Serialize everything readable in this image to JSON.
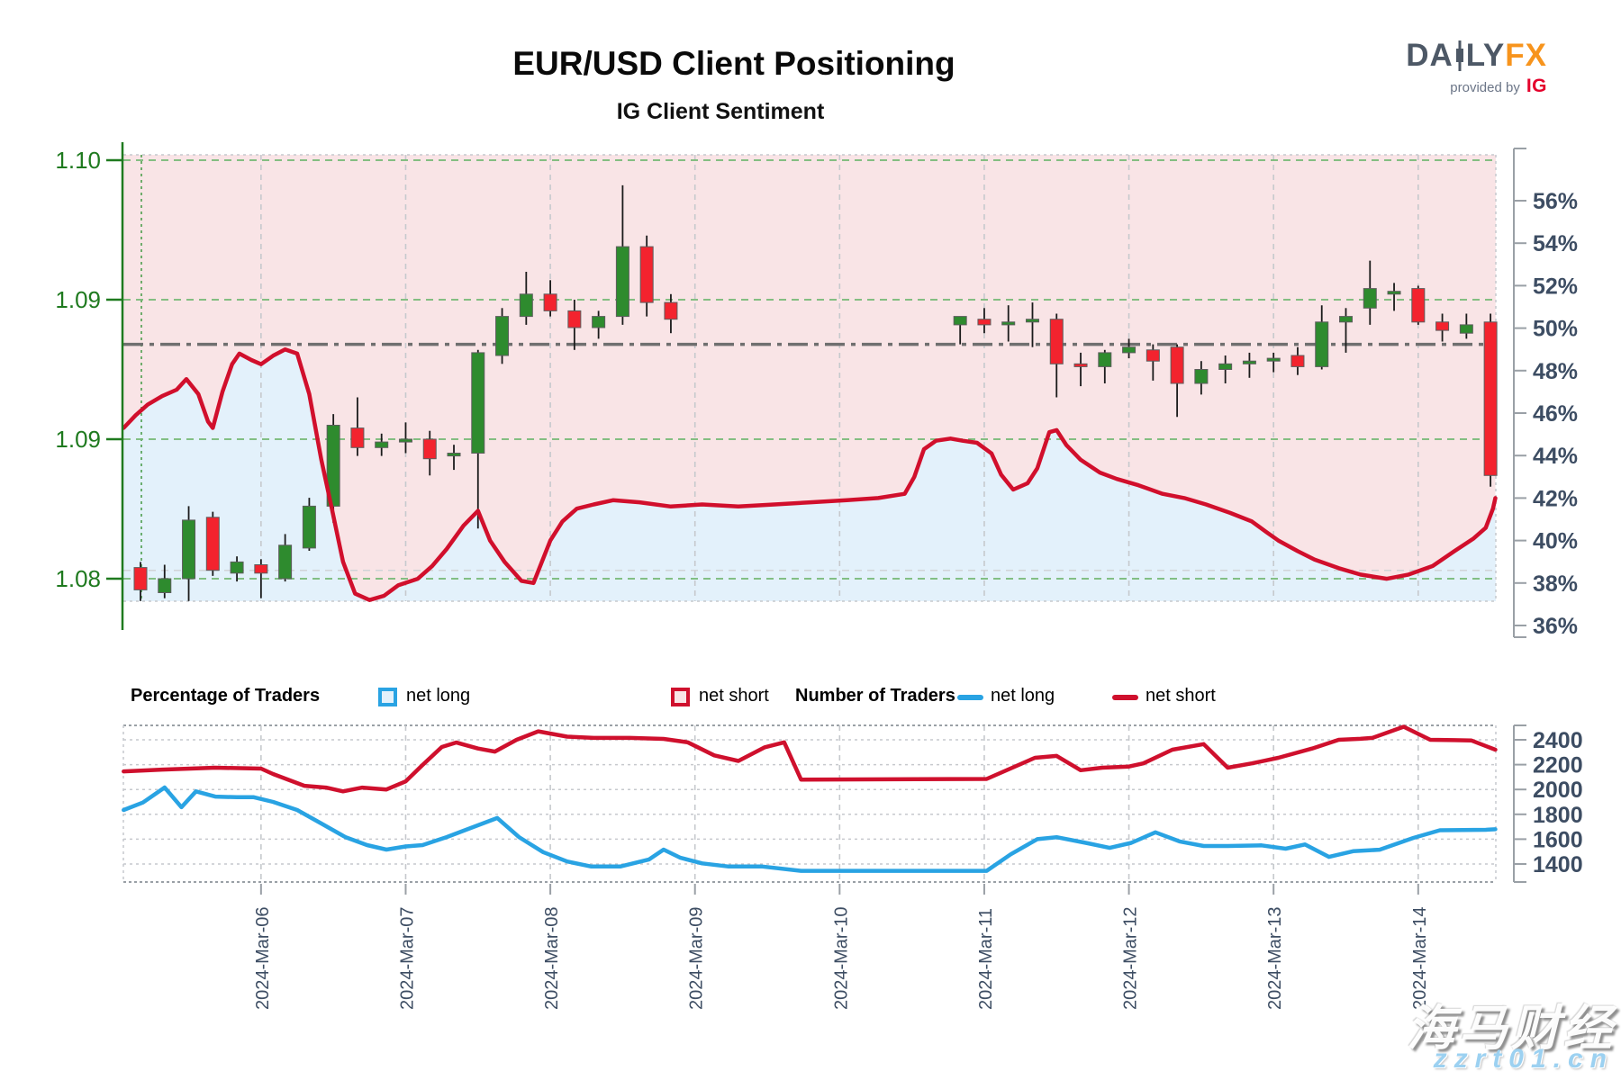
{
  "header": {
    "title": "EUR/USD Client Positioning",
    "subtitle": "IG Client Sentiment"
  },
  "logo": {
    "da": "DA",
    "ly": "LY",
    "fx": "FX",
    "provided": "provided by",
    "ig": "IG"
  },
  "legend": {
    "percent_title": "Percentage of Traders",
    "number_title": "Number of Traders",
    "net_long": "net long",
    "net_short": "net short"
  },
  "watermark": {
    "line1": "海马财经",
    "line2": "zzrt01.cn"
  },
  "colors": {
    "long_blue": "#29a3e3",
    "short_red": "#cf102d",
    "sentiment_line_red": "#d10f2c",
    "candle_green": "#2e8b2e",
    "candle_red": "#f3232e",
    "fill_pink": "#f9e4e6",
    "fill_blue": "#e3f1fb",
    "axis_green": "#1f7a1f",
    "axis_slate": "#3d4d63",
    "grid_grey": "#c6c9cd",
    "border_grey": "#9aa0a6",
    "grid_green": "#74b874",
    "dashdot_grey": "#6f6f6f"
  },
  "chart_data": [
    {
      "type": "candlestick",
      "title": "IG Client Sentiment",
      "pair": "EUR/USD",
      "interval_hours": 4,
      "legend_note": "blue area below line = net long %, pink area above line = net short %",
      "price_ticks": {
        "labels": [
          "1.10",
          "1.09",
          "1.09",
          "1.08"
        ],
        "values": [
          1.1,
          1.095,
          1.09,
          1.085
        ]
      },
      "percent_ticks": {
        "labels": [
          "56%",
          "54%",
          "52%",
          "50%",
          "48%",
          "46%",
          "44%",
          "42%",
          "40%",
          "38%",
          "36%"
        ],
        "values": [
          56,
          54,
          52,
          50,
          48,
          46,
          44,
          42,
          40,
          38,
          36
        ]
      },
      "date_ticks": [
        {
          "t": 5,
          "label": "2024-Mar-06"
        },
        {
          "t": 11,
          "label": "2024-Mar-07"
        },
        {
          "t": 17,
          "label": "2024-Mar-08"
        },
        {
          "t": 23,
          "label": "2024-Mar-09"
        },
        {
          "t": 29,
          "label": "2024-Mar-10"
        },
        {
          "t": 35,
          "label": "2024-Mar-11"
        },
        {
          "t": 41,
          "label": "2024-Mar-12"
        },
        {
          "t": 47,
          "label": "2024-Mar-13"
        },
        {
          "t": 53,
          "label": "2024-Mar-14"
        }
      ],
      "levels": {
        "dashdot_price": 1.0934,
        "grey_dashed_price": 1.0853
      },
      "candles": [
        [
          0,
          1.0854,
          1.0856,
          1.0842,
          1.0846
        ],
        [
          1,
          1.0845,
          1.0855,
          1.0843,
          1.085
        ],
        [
          2,
          1.085,
          1.0876,
          1.0842,
          1.0871
        ],
        [
          3,
          1.0872,
          1.0874,
          1.0851,
          1.0853
        ],
        [
          4,
          1.0852,
          1.0858,
          1.0849,
          1.0856
        ],
        [
          5,
          1.0855,
          1.0857,
          1.0843,
          1.0852
        ],
        [
          6,
          1.085,
          1.0866,
          1.0849,
          1.0862
        ],
        [
          7,
          1.0861,
          1.0879,
          1.086,
          1.0876
        ],
        [
          8,
          1.0876,
          1.0909,
          1.087,
          1.0905
        ],
        [
          9,
          1.0904,
          1.0915,
          1.0894,
          1.0897
        ],
        [
          10,
          1.0897,
          1.0902,
          1.0894,
          1.0899
        ],
        [
          11,
          1.0899,
          1.0906,
          1.0895,
          1.09
        ],
        [
          12,
          1.09,
          1.0903,
          1.0887,
          1.0893
        ],
        [
          13,
          1.0894,
          1.0898,
          1.0889,
          1.0895
        ],
        [
          14,
          1.0895,
          1.0932,
          1.0868,
          1.0931
        ],
        [
          15,
          1.093,
          1.0947,
          1.0927,
          1.0944
        ],
        [
          16,
          1.0944,
          1.096,
          1.0941,
          1.0952
        ],
        [
          17,
          1.0952,
          1.0957,
          1.0944,
          1.0946
        ],
        [
          18,
          1.0946,
          1.095,
          1.0932,
          1.094
        ],
        [
          19,
          1.094,
          1.0946,
          1.0936,
          1.0944
        ],
        [
          20,
          1.0944,
          1.0991,
          1.0941,
          1.0969
        ],
        [
          21,
          1.0969,
          1.0973,
          1.0944,
          1.0949
        ],
        [
          22,
          1.0949,
          1.0952,
          1.0938,
          1.0943
        ],
        [
          34,
          1.0941,
          1.0944,
          1.0934,
          1.0944
        ],
        [
          35,
          1.0943,
          1.0947,
          1.0938,
          1.0941
        ],
        [
          36,
          1.0941,
          1.0948,
          1.0935,
          1.0942
        ],
        [
          37,
          1.0942,
          1.0949,
          1.0933,
          1.0943
        ],
        [
          38,
          1.0943,
          1.0945,
          1.0915,
          1.0927
        ],
        [
          39,
          1.0927,
          1.0931,
          1.0919,
          1.0926
        ],
        [
          40,
          1.0926,
          1.0932,
          1.092,
          1.0931
        ],
        [
          41,
          1.0931,
          1.0936,
          1.0929,
          1.0933
        ],
        [
          42,
          1.0932,
          1.0934,
          1.0921,
          1.0928
        ],
        [
          43,
          1.0933,
          1.0934,
          1.0908,
          1.092
        ],
        [
          44,
          1.092,
          1.0928,
          1.0916,
          1.0925
        ],
        [
          45,
          1.0925,
          1.093,
          1.092,
          1.0927
        ],
        [
          46,
          1.0927,
          1.0931,
          1.0922,
          1.0928
        ],
        [
          47,
          1.0928,
          1.0931,
          1.0924,
          1.0929
        ],
        [
          48,
          1.093,
          1.0933,
          1.0923,
          1.0926
        ],
        [
          49,
          1.0926,
          1.0948,
          1.0925,
          1.0942
        ],
        [
          50,
          1.0942,
          1.0947,
          1.0931,
          1.0944
        ],
        [
          51,
          1.0947,
          1.0964,
          1.0941,
          1.0954
        ],
        [
          52,
          1.0952,
          1.0956,
          1.0946,
          1.0953
        ],
        [
          53,
          1.0954,
          1.0955,
          1.0941,
          1.0942
        ],
        [
          54,
          1.0942,
          1.0945,
          1.0935,
          1.0939
        ],
        [
          55,
          1.0938,
          1.0945,
          1.0936,
          1.0941
        ],
        [
          56,
          1.0942,
          1.0945,
          1.0883,
          1.0887
        ]
      ],
      "percent_net_long_line": [
        [
          -0.7,
          45.3
        ],
        [
          -0.2,
          45.9
        ],
        [
          0.3,
          46.4
        ],
        [
          0.9,
          46.8
        ],
        [
          1.5,
          47.1
        ],
        [
          1.9,
          47.6
        ],
        [
          2.4,
          46.9
        ],
        [
          2.8,
          45.6
        ],
        [
          3.0,
          45.3
        ],
        [
          3.4,
          47.0
        ],
        [
          3.8,
          48.3
        ],
        [
          4.1,
          48.8
        ],
        [
          4.6,
          48.5
        ],
        [
          5.0,
          48.3
        ],
        [
          5.5,
          48.7
        ],
        [
          6.0,
          49.0
        ],
        [
          6.5,
          48.8
        ],
        [
          7.0,
          46.9
        ],
        [
          7.5,
          43.8
        ],
        [
          7.9,
          41.7
        ],
        [
          8.4,
          39.0
        ],
        [
          8.9,
          37.5
        ],
        [
          9.5,
          37.2
        ],
        [
          10.1,
          37.4
        ],
        [
          10.7,
          37.9
        ],
        [
          11.5,
          38.2
        ],
        [
          12.1,
          38.8
        ],
        [
          12.7,
          39.6
        ],
        [
          13.4,
          40.7
        ],
        [
          14.0,
          41.4
        ],
        [
          14.5,
          40.0
        ],
        [
          15.1,
          39.0
        ],
        [
          15.8,
          38.1
        ],
        [
          16.3,
          38.0
        ],
        [
          17.0,
          40.0
        ],
        [
          17.5,
          40.9
        ],
        [
          18.1,
          41.5
        ],
        [
          18.8,
          41.7
        ],
        [
          19.6,
          41.9
        ],
        [
          20.7,
          41.8
        ],
        [
          22.0,
          41.6
        ],
        [
          23.3,
          41.7
        ],
        [
          24.8,
          41.6
        ],
        [
          26.3,
          41.7
        ],
        [
          27.8,
          41.8
        ],
        [
          29.3,
          41.9
        ],
        [
          30.6,
          42.0
        ],
        [
          31.7,
          42.2
        ],
        [
          32.1,
          43.0
        ],
        [
          32.5,
          44.3
        ],
        [
          33.0,
          44.7
        ],
        [
          33.6,
          44.8
        ],
        [
          34.1,
          44.7
        ],
        [
          34.7,
          44.6
        ],
        [
          35.3,
          44.1
        ],
        [
          35.7,
          43.1
        ],
        [
          36.2,
          42.4
        ],
        [
          36.8,
          42.7
        ],
        [
          37.2,
          43.4
        ],
        [
          37.7,
          45.1
        ],
        [
          38.0,
          45.2
        ],
        [
          38.4,
          44.5
        ],
        [
          39.0,
          43.8
        ],
        [
          39.8,
          43.2
        ],
        [
          40.5,
          42.9
        ],
        [
          41.4,
          42.6
        ],
        [
          42.4,
          42.2
        ],
        [
          43.3,
          42.0
        ],
        [
          44.2,
          41.7
        ],
        [
          45.2,
          41.3
        ],
        [
          46.1,
          40.9
        ],
        [
          46.7,
          40.4
        ],
        [
          47.2,
          40.0
        ],
        [
          48.0,
          39.5
        ],
        [
          48.7,
          39.1
        ],
        [
          49.7,
          38.7
        ],
        [
          50.6,
          38.4
        ],
        [
          51.7,
          38.2
        ],
        [
          52.6,
          38.4
        ],
        [
          53.6,
          38.8
        ],
        [
          54.5,
          39.5
        ],
        [
          55.3,
          40.1
        ],
        [
          55.8,
          40.6
        ],
        [
          56.1,
          41.5
        ],
        [
          56.2,
          42.0
        ]
      ]
    },
    {
      "type": "line",
      "title": "Number of Traders",
      "y_ticks": [
        2400,
        2200,
        2000,
        1800,
        1600,
        1400
      ],
      "date_ticks": [
        {
          "t": 5,
          "label": "2024-Mar-06"
        },
        {
          "t": 11,
          "label": "2024-Mar-07"
        },
        {
          "t": 17,
          "label": "2024-Mar-08"
        },
        {
          "t": 23,
          "label": "2024-Mar-09"
        },
        {
          "t": 29,
          "label": "2024-Mar-10"
        },
        {
          "t": 35,
          "label": "2024-Mar-11"
        },
        {
          "t": 41,
          "label": "2024-Mar-12"
        },
        {
          "t": 47,
          "label": "2024-Mar-13"
        },
        {
          "t": 53,
          "label": "2024-Mar-14"
        }
      ],
      "series": [
        {
          "name": "net short",
          "color_key": "short_red",
          "points": [
            [
              -0.7,
              2146
            ],
            [
              0.9,
              2160
            ],
            [
              3.1,
              2175
            ],
            [
              5.0,
              2168
            ],
            [
              5.5,
              2125
            ],
            [
              6.8,
              2030
            ],
            [
              7.7,
              2015
            ],
            [
              8.4,
              1985
            ],
            [
              9.2,
              2015
            ],
            [
              10.2,
              2000
            ],
            [
              11.0,
              2065
            ],
            [
              11.7,
              2197
            ],
            [
              12.5,
              2342
            ],
            [
              13.1,
              2378
            ],
            [
              14.0,
              2330
            ],
            [
              14.7,
              2305
            ],
            [
              15.6,
              2400
            ],
            [
              16.5,
              2468
            ],
            [
              17.7,
              2425
            ],
            [
              18.8,
              2415
            ],
            [
              20.3,
              2415
            ],
            [
              21.7,
              2407
            ],
            [
              22.7,
              2380
            ],
            [
              23.8,
              2275
            ],
            [
              24.8,
              2230
            ],
            [
              25.9,
              2340
            ],
            [
              26.7,
              2380
            ],
            [
              27.4,
              2080
            ],
            [
              35.1,
              2085
            ],
            [
              37.1,
              2255
            ],
            [
              38.0,
              2270
            ],
            [
              39.0,
              2155
            ],
            [
              39.9,
              2175
            ],
            [
              41.0,
              2185
            ],
            [
              41.6,
              2210
            ],
            [
              42.8,
              2320
            ],
            [
              44.1,
              2365
            ],
            [
              45.1,
              2175
            ],
            [
              46.1,
              2210
            ],
            [
              47.2,
              2255
            ],
            [
              48.6,
              2330
            ],
            [
              49.7,
              2400
            ],
            [
              50.6,
              2408
            ],
            [
              51.1,
              2415
            ],
            [
              52.4,
              2505
            ],
            [
              53.5,
              2400
            ],
            [
              54.5,
              2397
            ],
            [
              55.2,
              2395
            ],
            [
              56.2,
              2320
            ]
          ]
        },
        {
          "name": "net long",
          "color_key": "long_blue",
          "points": [
            [
              -0.7,
              1835
            ],
            [
              0.1,
              1895
            ],
            [
              1.0,
              2016
            ],
            [
              1.7,
              1857
            ],
            [
              2.3,
              1985
            ],
            [
              3.1,
              1943
            ],
            [
              4.0,
              1938
            ],
            [
              4.7,
              1938
            ],
            [
              5.5,
              1900
            ],
            [
              6.5,
              1835
            ],
            [
              7.5,
              1726
            ],
            [
              8.5,
              1617
            ],
            [
              9.4,
              1552
            ],
            [
              10.2,
              1516
            ],
            [
              11.0,
              1541
            ],
            [
              11.7,
              1552
            ],
            [
              12.7,
              1617
            ],
            [
              13.7,
              1690
            ],
            [
              14.8,
              1770
            ],
            [
              15.7,
              1617
            ],
            [
              16.7,
              1496
            ],
            [
              17.7,
              1420
            ],
            [
              18.7,
              1380
            ],
            [
              19.9,
              1380
            ],
            [
              21.1,
              1437
            ],
            [
              21.7,
              1516
            ],
            [
              22.4,
              1450
            ],
            [
              23.3,
              1405
            ],
            [
              24.4,
              1380
            ],
            [
              25.8,
              1380
            ],
            [
              27.4,
              1345
            ],
            [
              35.1,
              1345
            ],
            [
              36.1,
              1478
            ],
            [
              37.2,
              1600
            ],
            [
              38.0,
              1616
            ],
            [
              39.3,
              1567
            ],
            [
              40.2,
              1530
            ],
            [
              41.1,
              1570
            ],
            [
              42.1,
              1655
            ],
            [
              43.1,
              1582
            ],
            [
              44.1,
              1545
            ],
            [
              45.1,
              1545
            ],
            [
              46.5,
              1550
            ],
            [
              47.5,
              1523
            ],
            [
              48.3,
              1557
            ],
            [
              49.3,
              1457
            ],
            [
              50.3,
              1503
            ],
            [
              51.4,
              1515
            ],
            [
              52.8,
              1610
            ],
            [
              53.9,
              1672
            ],
            [
              55.8,
              1675
            ],
            [
              56.2,
              1680
            ]
          ]
        }
      ]
    }
  ]
}
